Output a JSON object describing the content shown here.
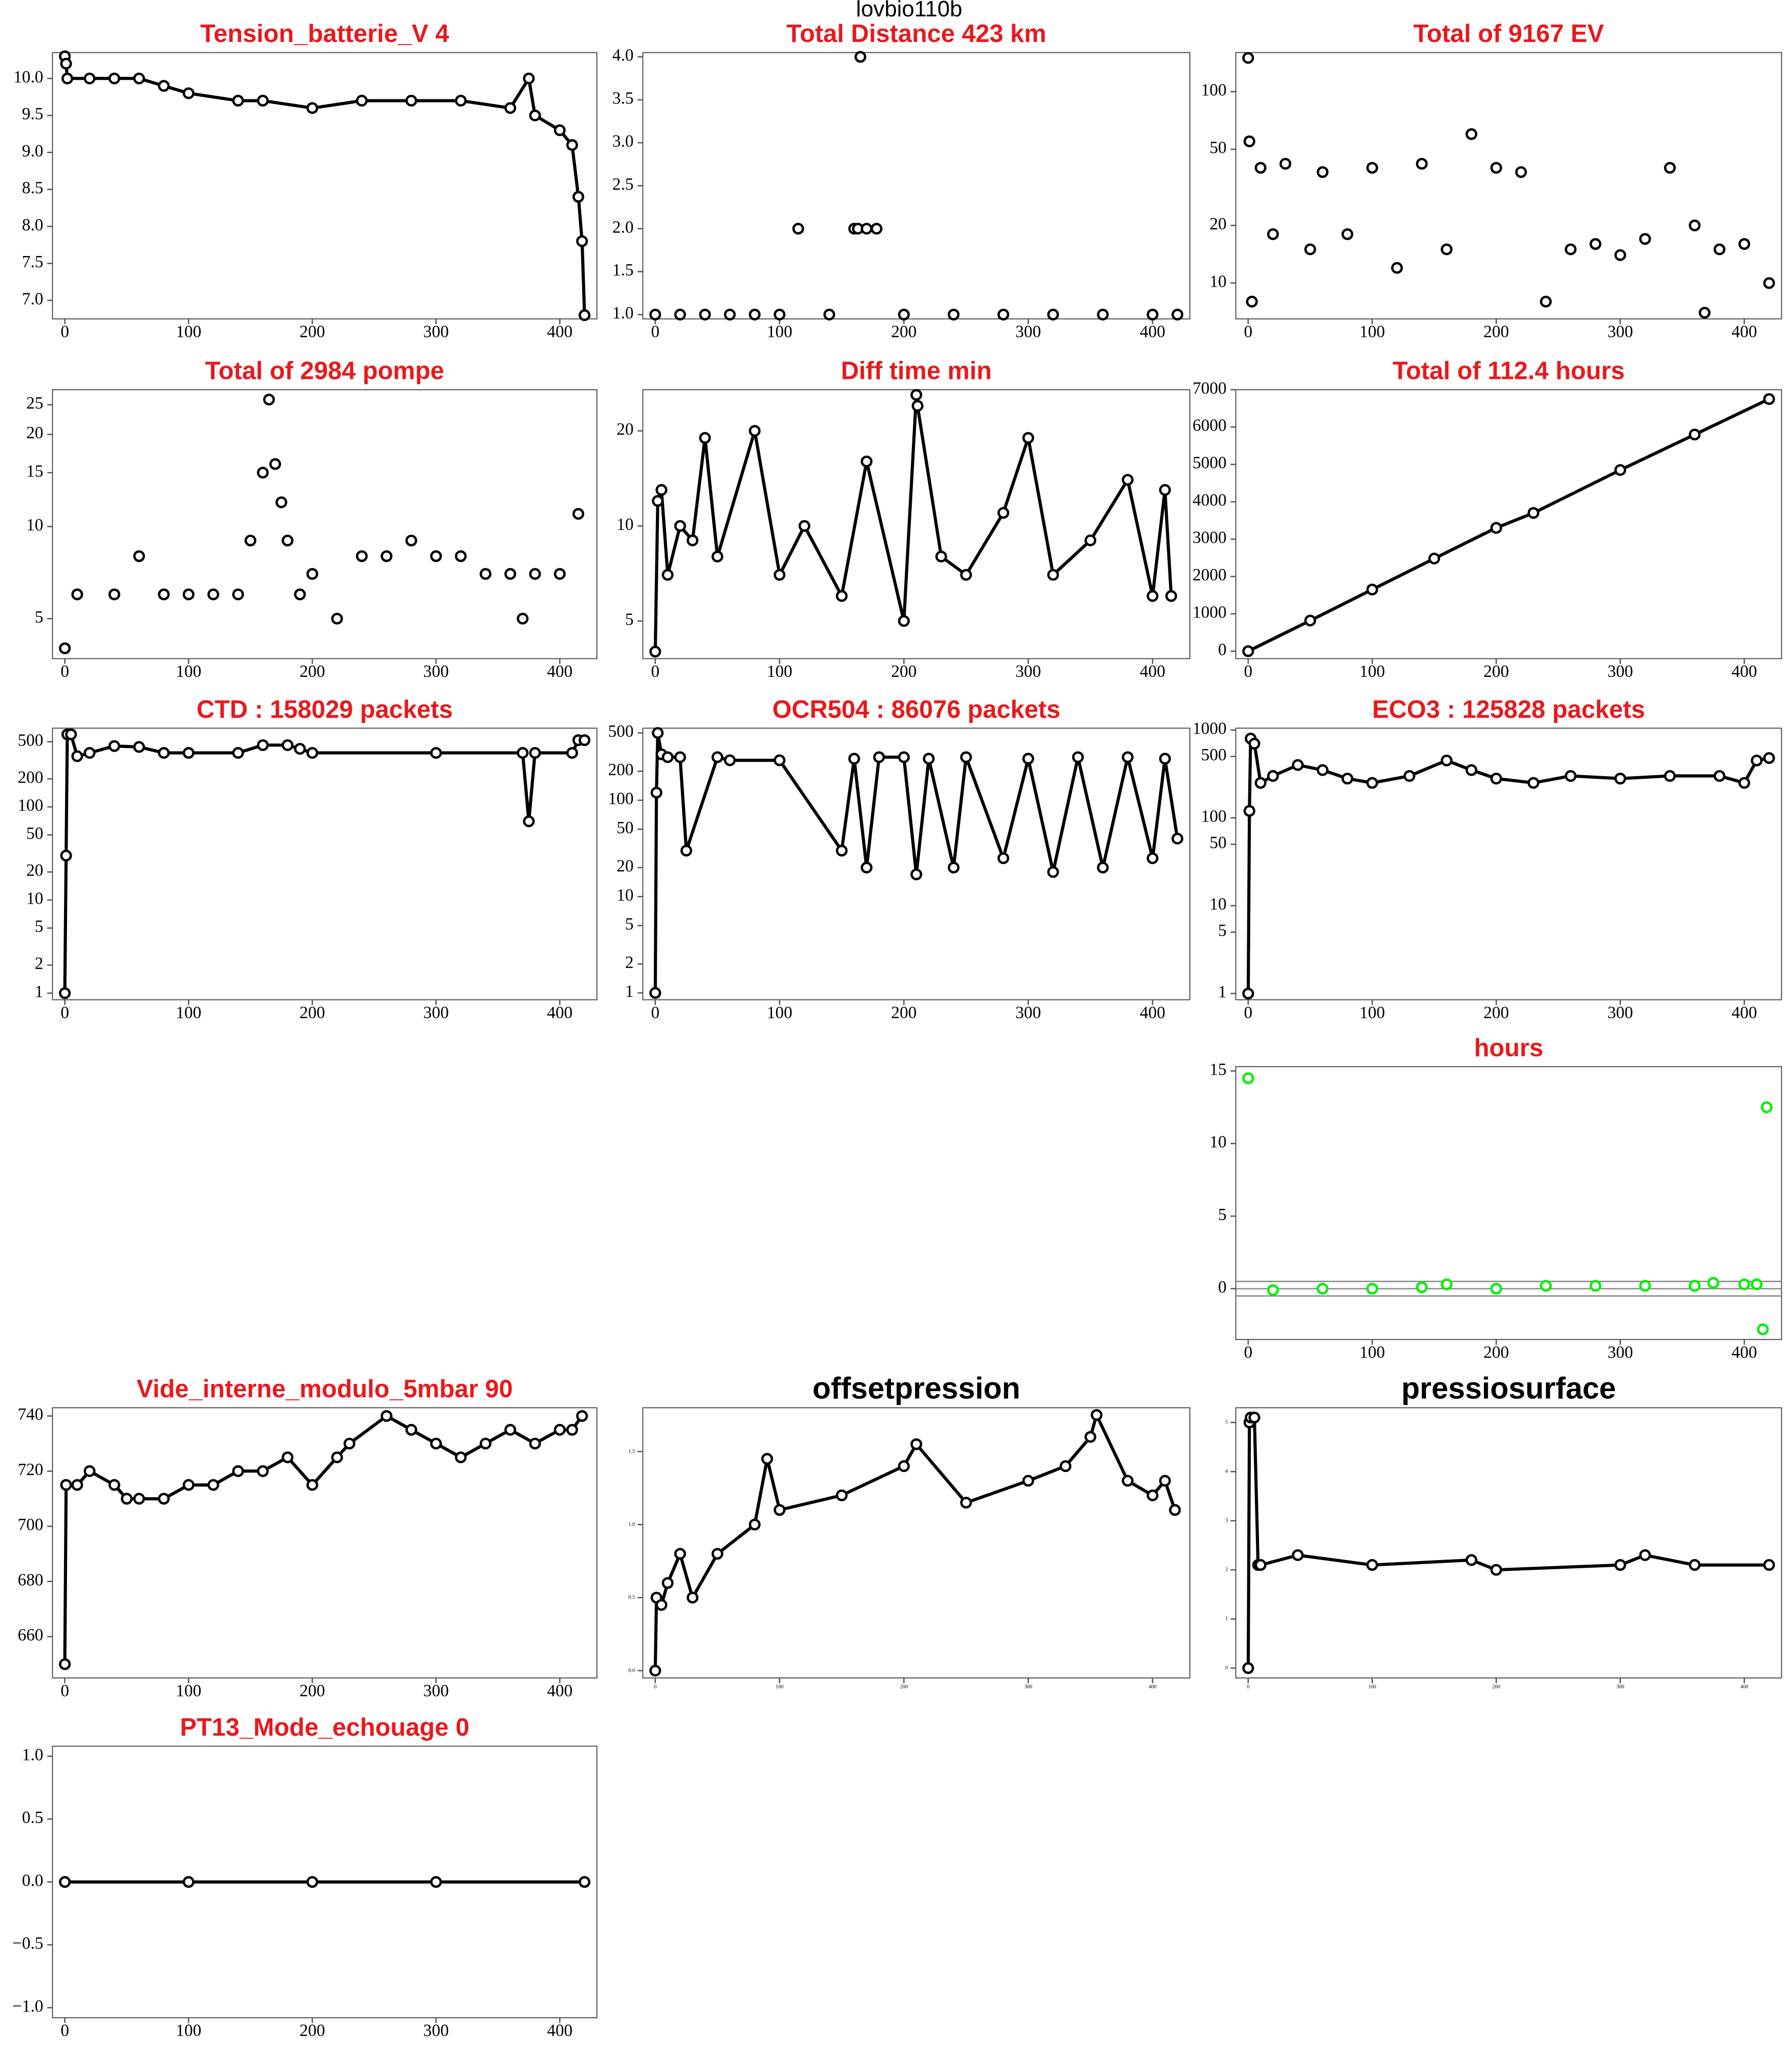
{
  "title": "lovbio110b",
  "chart_data": [
    {
      "type": "line",
      "title": "Tension_batterie_V 4",
      "title_color": "#e8191c",
      "color": "#000000",
      "x": [
        0,
        1,
        2,
        20,
        40,
        60,
        80,
        100,
        140,
        160,
        200,
        240,
        280,
        320,
        360,
        375,
        380,
        400,
        410,
        415,
        418,
        420
      ],
      "values": [
        10.3,
        10.2,
        10,
        10,
        10,
        10,
        9.9,
        9.8,
        9.7,
        9.7,
        9.6,
        9.7,
        9.7,
        9.7,
        9.6,
        10,
        9.5,
        9.3,
        9.1,
        8.4,
        7.8,
        6.8
      ],
      "xlim": [
        -10,
        430
      ],
      "xticks": [
        0,
        100,
        200,
        300,
        400
      ],
      "ylim": [
        6.75,
        10.35
      ],
      "yticks": [
        {
          "value": 7,
          "label": "7.0"
        },
        {
          "value": 7.5,
          "label": "7.5"
        },
        {
          "value": 8,
          "label": "8.0"
        },
        {
          "value": 8.5,
          "label": "8.5"
        },
        {
          "value": 9,
          "label": "9.0"
        },
        {
          "value": 9.5,
          "label": "9.5"
        },
        {
          "value": 10,
          "label": "10.0"
        }
      ]
    },
    {
      "type": "scatter",
      "title": "Total Distance  423  km",
      "title_color": "#e8191c",
      "color": "#000000",
      "x": [
        0,
        20,
        40,
        60,
        80,
        100,
        115,
        140,
        160,
        163,
        165,
        170,
        178,
        200,
        240,
        280,
        320,
        360,
        400,
        420
      ],
      "values": [
        1,
        1,
        1,
        1,
        1,
        1,
        2,
        1,
        2,
        2,
        4,
        2,
        2,
        1,
        1,
        1,
        1,
        1,
        1,
        1
      ],
      "xlim": [
        -10,
        430
      ],
      "xticks": [
        0,
        100,
        200,
        300,
        400
      ],
      "ylim": [
        0.95,
        4.05
      ],
      "yticks": [
        {
          "value": 1,
          "label": "1.0"
        },
        {
          "value": 1.5,
          "label": "1.5"
        },
        {
          "value": 2,
          "label": "2.0"
        },
        {
          "value": 2.5,
          "label": "2.5"
        },
        {
          "value": 3,
          "label": "3.0"
        },
        {
          "value": 3.5,
          "label": "3.5"
        },
        {
          "value": 4,
          "label": "4.0"
        }
      ]
    },
    {
      "type": "scatter",
      "title": "Total of  9167  EV",
      "title_color": "#e8191c",
      "color": "#000000",
      "log_y": true,
      "x": [
        0,
        1,
        3,
        10,
        20,
        30,
        50,
        60,
        80,
        100,
        120,
        140,
        160,
        180,
        200,
        220,
        240,
        260,
        280,
        300,
        320,
        340,
        360,
        368,
        380,
        400,
        420
      ],
      "values": [
        150,
        55,
        8,
        40,
        18,
        42,
        15,
        38,
        18,
        40,
        12,
        42,
        15,
        60,
        40,
        38,
        8,
        15,
        16,
        14,
        17,
        40,
        20,
        7,
        15,
        16,
        10
      ],
      "xlim": [
        -10,
        430
      ],
      "xticks": [
        0,
        100,
        200,
        300,
        400
      ],
      "ylim": [
        6.5,
        160
      ],
      "yticks": [
        10,
        20,
        50,
        100
      ]
    },
    {
      "type": "scatter",
      "title": "Total of  2984  pompe",
      "title_color": "#e8191c",
      "color": "#000000",
      "log_y": true,
      "x": [
        0,
        10,
        40,
        60,
        80,
        100,
        120,
        140,
        150,
        160,
        165,
        170,
        175,
        180,
        190,
        200,
        220,
        240,
        260,
        280,
        300,
        320,
        340,
        360,
        370,
        380,
        400,
        415
      ],
      "values": [
        4,
        6,
        6,
        8,
        6,
        6,
        6,
        6,
        9,
        15,
        26,
        16,
        12,
        9,
        6,
        7,
        5,
        8,
        8,
        9,
        8,
        8,
        7,
        7,
        5,
        7,
        7,
        11
      ],
      "xlim": [
        -10,
        430
      ],
      "xticks": [
        0,
        100,
        200,
        300,
        400
      ],
      "ylim": [
        3.7,
        28
      ],
      "yticks": [
        5,
        10,
        15,
        20,
        25
      ]
    },
    {
      "type": "line",
      "title": "Diff time min",
      "title_color": "#e8191c",
      "color": "#000000",
      "log_y": true,
      "x": [
        0,
        2,
        5,
        10,
        20,
        30,
        40,
        50,
        80,
        100,
        120,
        150,
        170,
        200,
        210,
        211,
        230,
        250,
        280,
        300,
        320,
        350,
        380,
        400,
        410,
        415
      ],
      "values": [
        4,
        12,
        13,
        7,
        10,
        9,
        19,
        8,
        20,
        7,
        10,
        6,
        16,
        5,
        26,
        24,
        8,
        7,
        11,
        19,
        7,
        9,
        14,
        6,
        13,
        6
      ],
      "xlim": [
        -10,
        430
      ],
      "xticks": [
        0,
        100,
        200,
        300,
        400
      ],
      "ylim": [
        3.8,
        27
      ],
      "yticks": [
        5,
        10,
        20
      ]
    },
    {
      "type": "line",
      "title": "Total of  112.4  hours",
      "title_color": "#e8191c",
      "color": "#000000",
      "x": [
        0,
        50,
        100,
        150,
        200,
        230,
        300,
        360,
        420
      ],
      "values": [
        0,
        820,
        1650,
        2480,
        3300,
        3700,
        4850,
        5800,
        6750
      ],
      "xlim": [
        -10,
        430
      ],
      "xticks": [
        0,
        100,
        200,
        300,
        400
      ],
      "ylim": [
        -200,
        7000
      ],
      "yticks": [
        0,
        1000,
        2000,
        3000,
        4000,
        5000,
        6000,
        7000
      ]
    },
    {
      "type": "line",
      "title": "CTD  : 158029  packets",
      "title_color": "#e8191c",
      "color": "#000000",
      "log_y": true,
      "x": [
        0,
        1,
        2,
        5,
        10,
        20,
        40,
        60,
        80,
        100,
        140,
        160,
        180,
        190,
        200,
        300,
        370,
        375,
        380,
        410,
        415,
        420
      ],
      "values": [
        1,
        30,
        600,
        600,
        350,
        380,
        450,
        440,
        380,
        380,
        380,
        460,
        460,
        420,
        380,
        380,
        380,
        70,
        380,
        380,
        520,
        520
      ],
      "xlim": [
        -10,
        430
      ],
      "xticks": [
        0,
        100,
        200,
        300,
        400
      ],
      "ylim": [
        0.85,
        700
      ],
      "yticks": [
        1,
        2,
        5,
        10,
        20,
        50,
        100,
        200,
        500
      ]
    },
    {
      "type": "line",
      "title": "OCR504  : 86076  packets",
      "title_color": "#e8191c",
      "color": "#000000",
      "log_y": true,
      "x": [
        0,
        1,
        2,
        5,
        10,
        20,
        25,
        50,
        60,
        100,
        150,
        160,
        170,
        180,
        200,
        210,
        220,
        240,
        250,
        280,
        300,
        320,
        340,
        360,
        380,
        400,
        410,
        420
      ],
      "values": [
        1,
        120,
        500,
        300,
        280,
        280,
        30,
        280,
        260,
        260,
        30,
        270,
        20,
        280,
        280,
        17,
        270,
        20,
        280,
        25,
        270,
        18,
        280,
        20,
        280,
        25,
        270,
        40
      ],
      "xlim": [
        -10,
        430
      ],
      "xticks": [
        0,
        100,
        200,
        300,
        400
      ],
      "ylim": [
        0.85,
        560
      ],
      "yticks": [
        1,
        2,
        5,
        10,
        20,
        50,
        100,
        200,
        500
      ]
    },
    {
      "type": "line",
      "title": "ECO3  : 125828  packets",
      "title_color": "#e8191c",
      "color": "#000000",
      "log_y": true,
      "x": [
        0,
        1,
        2,
        5,
        10,
        20,
        40,
        60,
        80,
        100,
        130,
        160,
        180,
        200,
        230,
        260,
        300,
        340,
        380,
        400,
        410,
        420
      ],
      "values": [
        1,
        120,
        800,
        700,
        250,
        300,
        400,
        350,
        280,
        250,
        300,
        450,
        350,
        280,
        250,
        300,
        280,
        300,
        300,
        250,
        450,
        480
      ],
      "xlim": [
        -10,
        430
      ],
      "xticks": [
        0,
        100,
        200,
        300,
        400
      ],
      "ylim": [
        0.85,
        1050
      ],
      "yticks": [
        1,
        5,
        10,
        50,
        100,
        500,
        1000
      ]
    },
    {
      "type": "scatter",
      "title": "hours",
      "title_color": "#e8191c",
      "color": "#00ee00",
      "x": [
        0,
        20,
        60,
        100,
        140,
        160,
        200,
        240,
        280,
        320,
        360,
        375,
        400,
        410,
        415,
        418
      ],
      "values": [
        14.5,
        -0.1,
        0,
        0,
        0.1,
        0.3,
        0,
        0.2,
        0.2,
        0.2,
        0.2,
        0.4,
        0.3,
        0.3,
        -2.8,
        12.5
      ],
      "hlines": [
        0.5,
        0,
        -0.5
      ],
      "xlim": [
        -10,
        430
      ],
      "xticks": [
        0,
        100,
        200,
        300,
        400
      ],
      "ylim": [
        -3.5,
        15.3
      ],
      "yticks": [
        0,
        5,
        10,
        15
      ]
    },
    {
      "type": "line",
      "title": "Vide_interne_modulo_5mbar 90",
      "title_color": "#e8191c",
      "color": "#000000",
      "x": [
        0,
        1,
        10,
        20,
        40,
        50,
        60,
        80,
        100,
        120,
        140,
        160,
        180,
        200,
        220,
        230,
        260,
        280,
        300,
        320,
        340,
        360,
        380,
        400,
        410,
        418
      ],
      "values": [
        650,
        715,
        715,
        720,
        715,
        710,
        710,
        710,
        715,
        715,
        720,
        720,
        725,
        715,
        725,
        730,
        740,
        735,
        730,
        725,
        730,
        735,
        730,
        735,
        735,
        740
      ],
      "xlim": [
        -10,
        430
      ],
      "xticks": [
        0,
        100,
        200,
        300,
        400
      ],
      "ylim": [
        645,
        743
      ],
      "yticks": [
        660,
        680,
        700,
        720,
        740
      ]
    },
    {
      "type": "line",
      "title": "offsetpression",
      "title_color": "#000000",
      "color": "#000000",
      "x": [
        0,
        1,
        5,
        10,
        20,
        30,
        50,
        80,
        90,
        100,
        150,
        200,
        210,
        250,
        300,
        330,
        350,
        355,
        380,
        400,
        410,
        418
      ],
      "values": [
        0,
        0.5,
        0.45,
        0.6,
        0.8,
        0.5,
        0.8,
        1.0,
        1.45,
        1.1,
        1.2,
        1.4,
        1.55,
        1.15,
        1.3,
        1.4,
        1.6,
        1.75,
        1.3,
        1.2,
        1.3,
        1.1
      ],
      "xlim": [
        -10,
        430
      ],
      "xticks": [
        0,
        100,
        200,
        300,
        400
      ],
      "ylim": [
        -0.05,
        1.8
      ],
      "yticks": [
        {
          "value": 0,
          "label": "0.0"
        },
        {
          "value": 0.5,
          "label": "0.5"
        },
        {
          "value": 1,
          "label": "1.0"
        },
        {
          "value": 1.5,
          "label": "1.5"
        }
      ]
    },
    {
      "type": "line",
      "title": "pressiosurface",
      "title_color": "#000000",
      "color": "#000000",
      "x": [
        0,
        1,
        2,
        5,
        8,
        10,
        40,
        100,
        180,
        200,
        300,
        320,
        360,
        420
      ],
      "values": [
        0,
        5,
        5.1,
        5.1,
        2.1,
        2.1,
        2.3,
        2.1,
        2.2,
        2.0,
        2.1,
        2.3,
        2.1,
        2.1
      ],
      "xlim": [
        -10,
        430
      ],
      "xticks": [
        0,
        100,
        200,
        300,
        400
      ],
      "ylim": [
        -0.2,
        5.3
      ],
      "yticks": [
        0,
        1,
        2,
        3,
        4,
        5
      ]
    },
    {
      "type": "line",
      "title": "PT13_Mode_echouage  0",
      "title_color": "#e8191c",
      "color": "#000000",
      "x": [
        0,
        100,
        200,
        300,
        420
      ],
      "values": [
        0,
        0,
        0,
        0,
        0
      ],
      "xlim": [
        -10,
        430
      ],
      "xticks": [
        0,
        100,
        200,
        300,
        400
      ],
      "ylim": [
        -1.08,
        1.08
      ],
      "yticks": [
        {
          "value": -1,
          "label": "−1.0"
        },
        {
          "value": -0.5,
          "label": "−0.5"
        },
        {
          "value": 0,
          "label": "0.0"
        },
        {
          "value": 0.5,
          "label": "0.5"
        },
        {
          "value": 1,
          "label": "1.0"
        }
      ]
    }
  ]
}
